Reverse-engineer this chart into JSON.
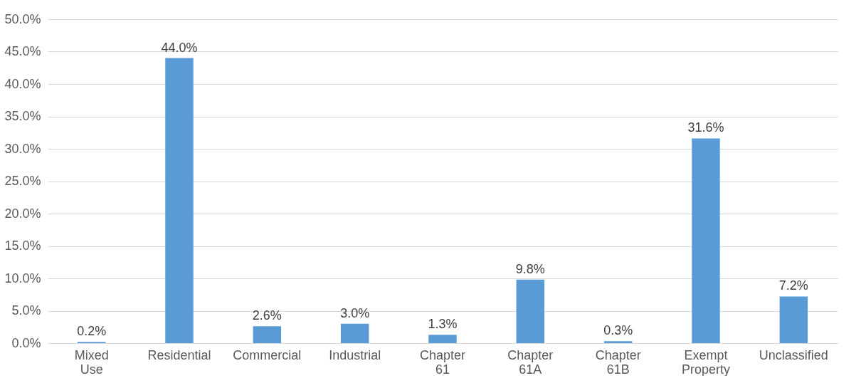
{
  "chart_data": {
    "type": "bar",
    "categories": [
      "Mixed Use",
      "Residential",
      "Commercial",
      "Industrial",
      "Chapter 61",
      "Chapter 61A",
      "Chapter 61B",
      "Exempt Property",
      "Unclassified"
    ],
    "values": [
      0.2,
      44.0,
      2.6,
      3.0,
      1.3,
      9.8,
      0.3,
      31.6,
      7.2
    ],
    "value_labels": [
      "0.2%",
      "44.0%",
      "2.6%",
      "3.0%",
      "1.3%",
      "9.8%",
      "0.3%",
      "31.6%",
      "7.2%"
    ],
    "color": "#5b9bd5",
    "ylim": [
      0,
      50
    ],
    "yticks": [
      {
        "value": 0,
        "label": "0.0%"
      },
      {
        "value": 5,
        "label": "5.0%"
      },
      {
        "value": 10,
        "label": "10.0%"
      },
      {
        "value": 15,
        "label": "15.0%"
      },
      {
        "value": 20,
        "label": "20.0%"
      },
      {
        "value": 25,
        "label": "25.0%"
      },
      {
        "value": 30,
        "label": "30.0%"
      },
      {
        "value": 35,
        "label": "35.0%"
      },
      {
        "value": 40,
        "label": "40.0%"
      },
      {
        "value": 45,
        "label": "45.0%"
      },
      {
        "value": 50,
        "label": "50.0%"
      }
    ],
    "grid": "y"
  }
}
